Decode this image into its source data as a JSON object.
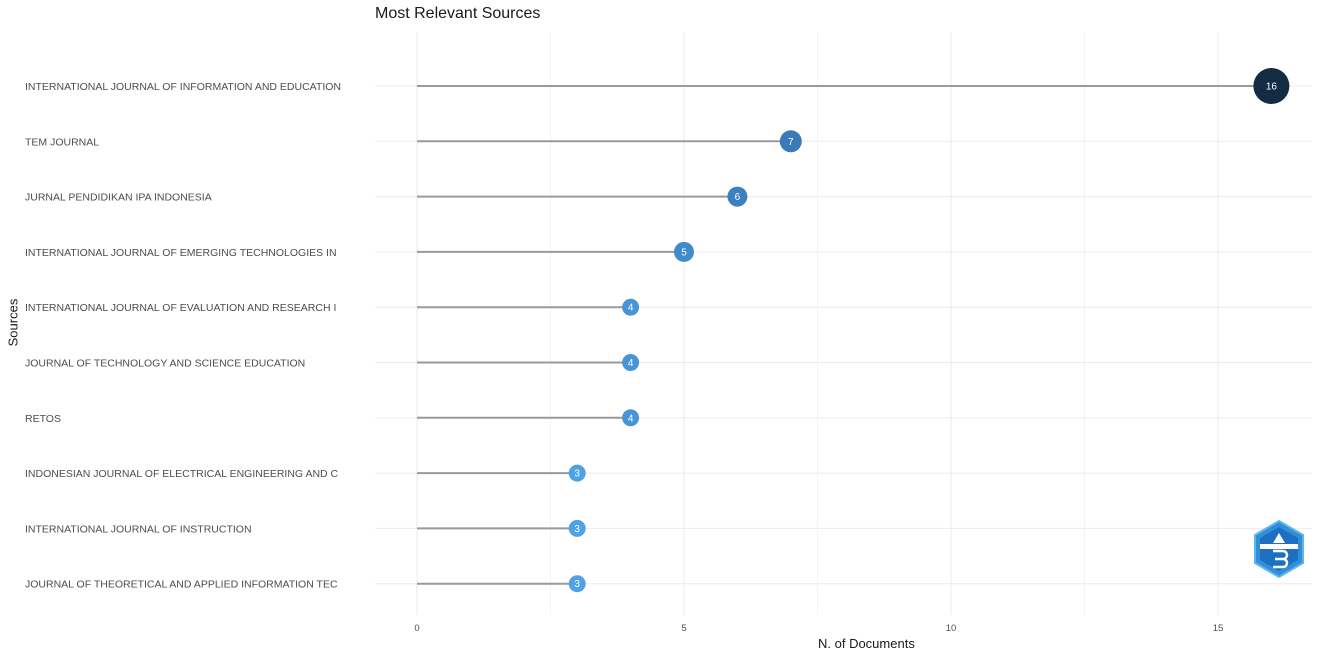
{
  "chart_data": {
    "type": "lollipop",
    "title": "Most Relevant Sources",
    "xlabel": "N. of Documents",
    "ylabel": "Sources",
    "xlim": [
      0,
      17
    ],
    "xticks": [
      0,
      5,
      10,
      15
    ],
    "grid": true,
    "categories": [
      "INTERNATIONAL JOURNAL OF INFORMATION AND EDUCATION",
      "TEM JOURNAL",
      "JURNAL PENDIDIKAN IPA INDONESIA",
      "INTERNATIONAL JOURNAL OF EMERGING TECHNOLOGIES IN",
      "INTERNATIONAL JOURNAL OF EVALUATION AND RESEARCH I",
      "JOURNAL OF TECHNOLOGY AND SCIENCE EDUCATION",
      "RETOS",
      "INDONESIAN JOURNAL OF ELECTRICAL ENGINEERING AND C",
      "INTERNATIONAL JOURNAL OF INSTRUCTION",
      "JOURNAL OF THEORETICAL AND APPLIED INFORMATION TEC"
    ],
    "values": [
      16,
      7,
      6,
      5,
      4,
      4,
      4,
      3,
      3,
      3
    ],
    "colors": [
      "#132b43",
      "#3a7ab8",
      "#3c80bf",
      "#4289c9",
      "#4795d6",
      "#4795d6",
      "#4795d6",
      "#4ea2e5",
      "#4ea2e5",
      "#4ea2e5"
    ]
  },
  "logo": {
    "name": "bibliometrix"
  }
}
